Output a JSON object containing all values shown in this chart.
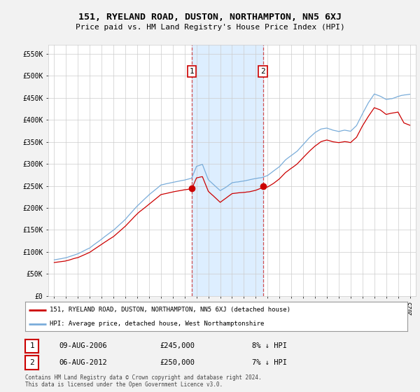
{
  "title": "151, RYELAND ROAD, DUSTON, NORTHAMPTON, NN5 6XJ",
  "subtitle": "Price paid vs. HM Land Registry's House Price Index (HPI)",
  "ylabel_ticks": [
    "£0",
    "£50K",
    "£100K",
    "£150K",
    "£200K",
    "£250K",
    "£300K",
    "£350K",
    "£400K",
    "£450K",
    "£500K",
    "£550K"
  ],
  "ytick_values": [
    0,
    50000,
    100000,
    150000,
    200000,
    250000,
    300000,
    350000,
    400000,
    450000,
    500000,
    550000
  ],
  "ylim": [
    0,
    570000
  ],
  "xlim_start": 1994.5,
  "xlim_end": 2025.5,
  "bg_color": "#f2f2f2",
  "plot_bg_color": "#ffffff",
  "red_line_color": "#cc0000",
  "blue_line_color": "#7aadda",
  "sale1_year": 2006.6,
  "sale1_price": 245000,
  "sale2_year": 2012.6,
  "sale2_price": 250000,
  "legend_line1": "151, RYELAND ROAD, DUSTON, NORTHAMPTON, NN5 6XJ (detached house)",
  "legend_line2": "HPI: Average price, detached house, West Northamptonshire",
  "note1_label": "1",
  "note1_date": "09-AUG-2006",
  "note1_price": "£245,000",
  "note1_hpi": "8% ↓ HPI",
  "note2_label": "2",
  "note2_date": "06-AUG-2012",
  "note2_price": "£250,000",
  "note2_hpi": "7% ↓ HPI",
  "footer": "Contains HM Land Registry data © Crown copyright and database right 2024.\nThis data is licensed under the Open Government Licence v3.0.",
  "shade_x1_start": 2006.6,
  "shade_x1_end": 2012.6,
  "shade_color": "#ddeeff"
}
